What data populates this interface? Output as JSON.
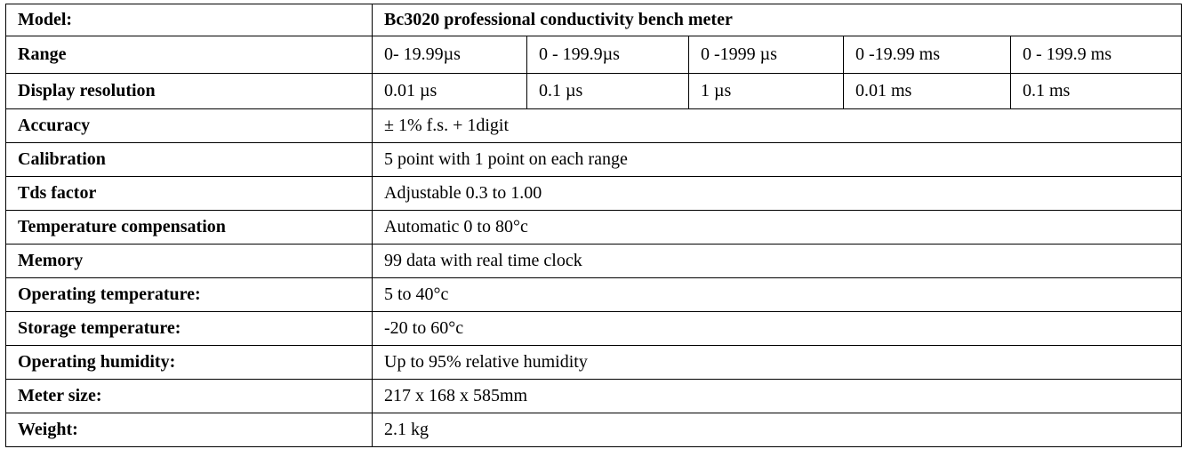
{
  "model": {
    "label": "Model:",
    "value": "Bc3020 professional conductivity bench meter"
  },
  "range": {
    "label": "Range",
    "values": [
      "0- 19.99µs",
      "0 - 199.9µs",
      "0 -1999 µs",
      "0 -19.99 ms",
      "0 - 199.9 ms"
    ]
  },
  "resolution": {
    "label": "Display resolution",
    "values": [
      "0.01 µs",
      "0.1 µs",
      "1 µs",
      "0.01 ms",
      "0.1 ms"
    ]
  },
  "specs": [
    {
      "label": "Accuracy",
      "value": "± 1% f.s. + 1digit"
    },
    {
      "label": "Calibration",
      "value": "5 point with 1 point on each range"
    },
    {
      "label": "Tds factor",
      "value": "Adjustable 0.3 to 1.00"
    },
    {
      "label": "Temperature compensation",
      "value": "Automatic 0 to 80°c"
    },
    {
      "label": "Memory",
      "value": "99 data with real time clock"
    },
    {
      "label": "Operating temperature:",
      "value": "5 to 40°c"
    },
    {
      "label": "Storage temperature:",
      "value": "-20 to 60°c"
    },
    {
      "label": "Operating humidity:",
      "value": "Up to 95% relative humidity"
    },
    {
      "label": "Meter size:",
      "value": "217 x 168 x 585mm"
    },
    {
      "label": "Weight:",
      "value": "2.1 kg"
    }
  ]
}
